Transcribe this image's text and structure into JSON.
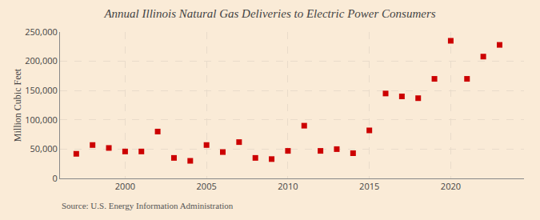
{
  "chart_data": {
    "type": "scatter",
    "title": "Annual Illinois Natural Gas Deliveries to Electric Power Consumers",
    "ylabel": "Million Cubic Feet",
    "annotations": [
      "Source: U.S. Energy Information Administration"
    ],
    "x": [
      1997,
      1998,
      1999,
      2000,
      2001,
      2002,
      2003,
      2004,
      2005,
      2006,
      2007,
      2008,
      2009,
      2010,
      2011,
      2012,
      2013,
      2014,
      2015,
      2016,
      2017,
      2018,
      2019,
      2020,
      2021,
      2022,
      2023
    ],
    "values": [
      42000,
      57000,
      52000,
      46000,
      46000,
      80000,
      35000,
      30000,
      57000,
      45000,
      62000,
      35000,
      33000,
      47000,
      90000,
      47000,
      50000,
      43000,
      82000,
      145000,
      140000,
      137000,
      170000,
      235000,
      170000,
      208000,
      228000
    ],
    "color": "#cc0000",
    "marker": "square",
    "xlim": [
      1996,
      2024.5
    ],
    "xticks": [
      2000,
      2005,
      2010,
      2015,
      2020
    ],
    "ylim": [
      0,
      250000
    ],
    "yticks": [
      0,
      {
        "value": 50000,
        "label": "50,000"
      },
      {
        "value": 100000,
        "label": "100,000"
      },
      {
        "value": 150000,
        "label": "150,000"
      },
      {
        "value": 200000,
        "label": "200,000"
      },
      {
        "value": 250000,
        "label": "250,000"
      }
    ],
    "grid": true
  }
}
